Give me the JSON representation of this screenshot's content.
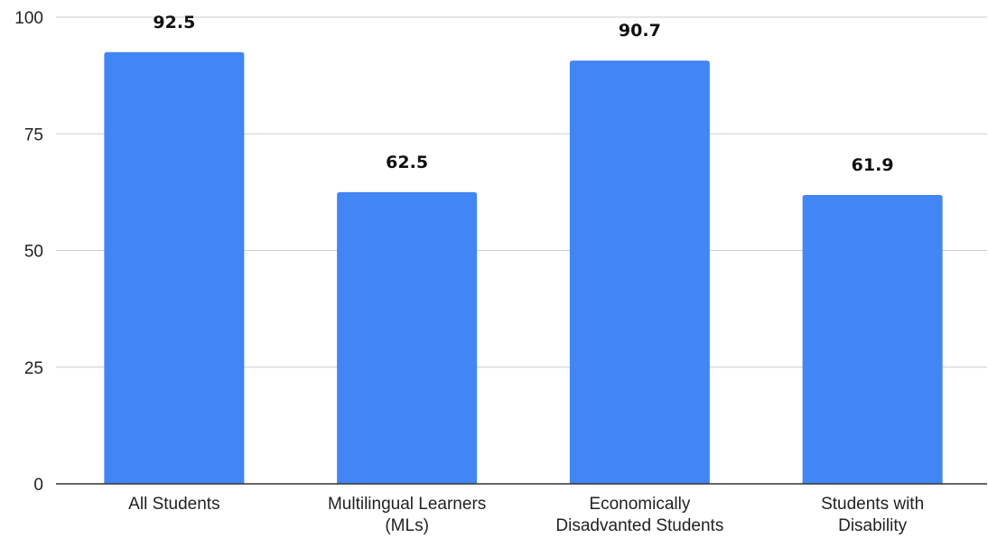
{
  "chart_data": {
    "type": "bar",
    "categories": [
      [
        "All Students"
      ],
      [
        "Multilingual Learners",
        "(MLs)"
      ],
      [
        "Economically",
        "Disadvanted Students"
      ],
      [
        "Students with",
        "Disability"
      ]
    ],
    "values": [
      92.5,
      62.5,
      90.7,
      61.9
    ],
    "data_labels": [
      "92.5",
      "62.5",
      "90.7",
      "61.9"
    ],
    "yticks": [
      0,
      25,
      50,
      75,
      100
    ],
    "ylim": [
      0,
      100
    ],
    "title": "",
    "xlabel": "",
    "ylabel": "",
    "grid": true,
    "legend": "none",
    "colors": {
      "bar": "#4285f4"
    }
  }
}
